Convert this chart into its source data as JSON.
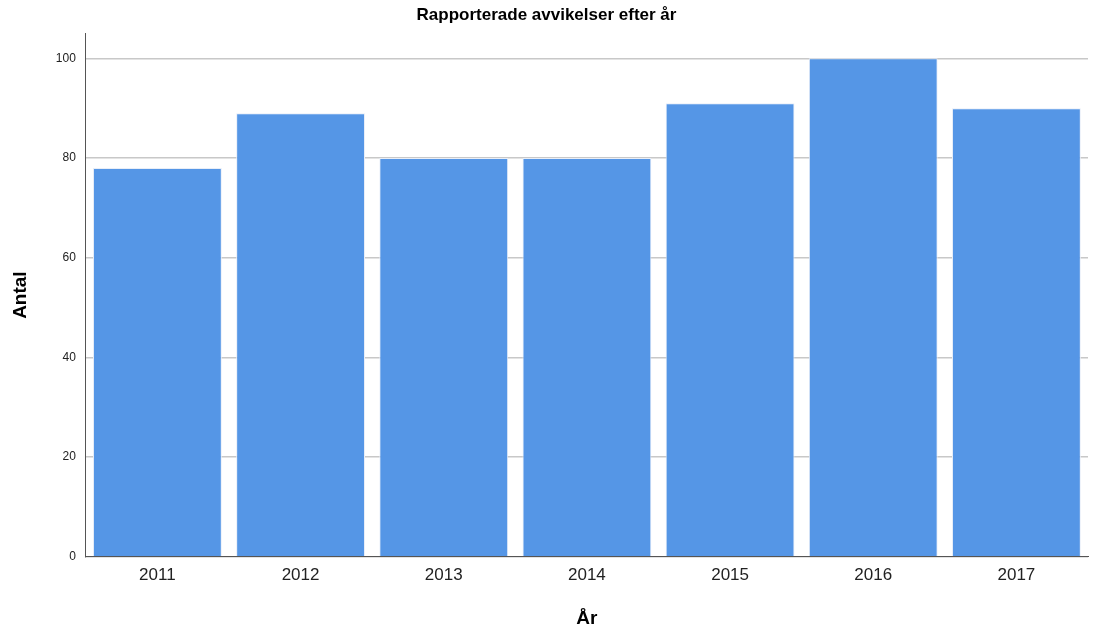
{
  "chart_data": {
    "type": "bar",
    "title": "Rapporterade avvikelser efter år",
    "xlabel": "År",
    "ylabel": "Antal",
    "categories": [
      "2011",
      "2012",
      "2013",
      "2014",
      "2015",
      "2016",
      "2017"
    ],
    "values": [
      78,
      89,
      80,
      80,
      91,
      100,
      90
    ],
    "color": "#5596e6",
    "ylim": [
      0,
      105
    ],
    "yticks": [
      0,
      20,
      40,
      60,
      80,
      100
    ],
    "grid": "y"
  }
}
